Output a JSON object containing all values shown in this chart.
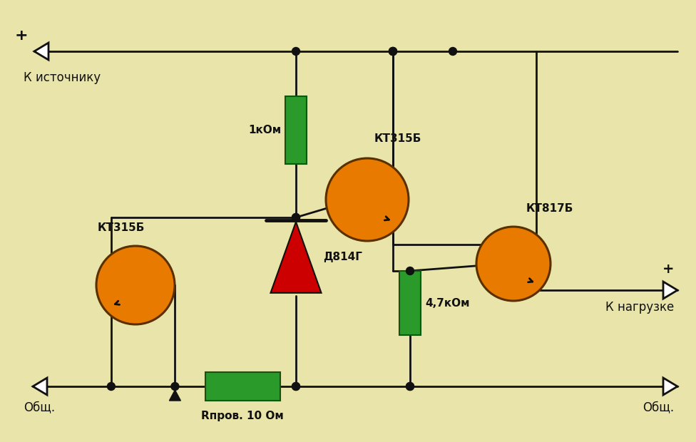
{
  "bg_color": "#e8e4aa",
  "wire_color": "#111111",
  "component_fill": "#e87a00",
  "resistor_fill": "#2a9a2a",
  "node_color": "#111111",
  "text_color": "#111111",
  "labels": {
    "plus_top": "+",
    "source": "К источнику",
    "load": "К нагрузке",
    "gnd_left": "Общ.",
    "gnd_right": "Общ.",
    "plus_right": "+",
    "r1_label": "1кОм",
    "r2_label": "4,7кОм",
    "r3_label": "Rпров. 10 Ом",
    "t1_label": "КТ315Б",
    "t2_label": "КТ315Б",
    "t3_label": "КТ817Б",
    "d1_label": "Д814Г"
  },
  "figsize": [
    9.76,
    6.2
  ],
  "dpi": 100
}
